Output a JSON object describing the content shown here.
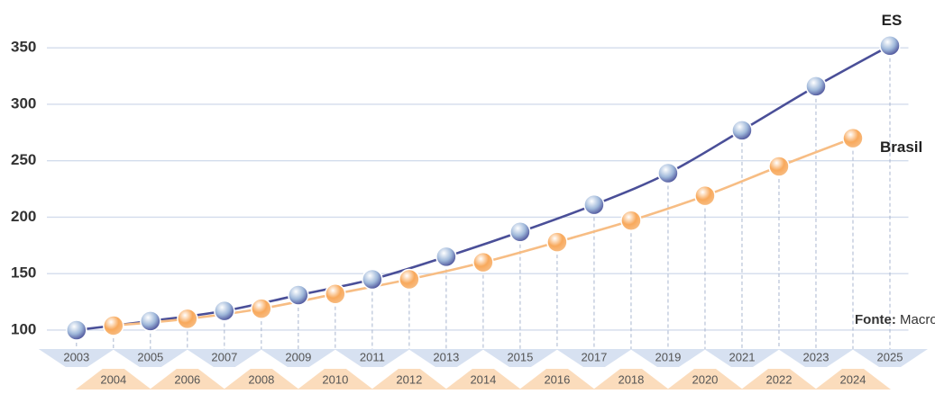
{
  "chart_data": {
    "type": "line",
    "series": [
      {
        "name": "ES",
        "color": "#4a4f98",
        "marker_color": "#9fb8da",
        "x": [
          2003,
          2005,
          2007,
          2009,
          2011,
          2013,
          2015,
          2017,
          2019,
          2021,
          2023,
          2025
        ],
        "values": [
          100,
          108,
          117,
          131,
          145,
          165,
          187,
          211,
          239,
          277,
          316,
          352
        ]
      },
      {
        "name": "Brasil",
        "color": "#f7bd84",
        "marker_color": "#f8a95c",
        "x": [
          2004,
          2006,
          2008,
          2010,
          2012,
          2014,
          2016,
          2018,
          2020,
          2022,
          2024
        ],
        "values": [
          104,
          110,
          119,
          132,
          145,
          160,
          178,
          197,
          219,
          245,
          270
        ]
      }
    ],
    "xlim": [
      2002.2,
      2025.5
    ],
    "xticks": [
      2003,
      2004,
      2005,
      2006,
      2007,
      2008,
      2009,
      2010,
      2011,
      2012,
      2013,
      2014,
      2015,
      2016,
      2017,
      2018,
      2019,
      2020,
      2021,
      2022,
      2023,
      2024,
      2025
    ],
    "ylim": [
      92,
      390
    ],
    "yticks": [
      100,
      150,
      200,
      250,
      300,
      350
    ],
    "grid": true,
    "source": {
      "label": "Fonte:",
      "text": "Macroplan"
    }
  }
}
